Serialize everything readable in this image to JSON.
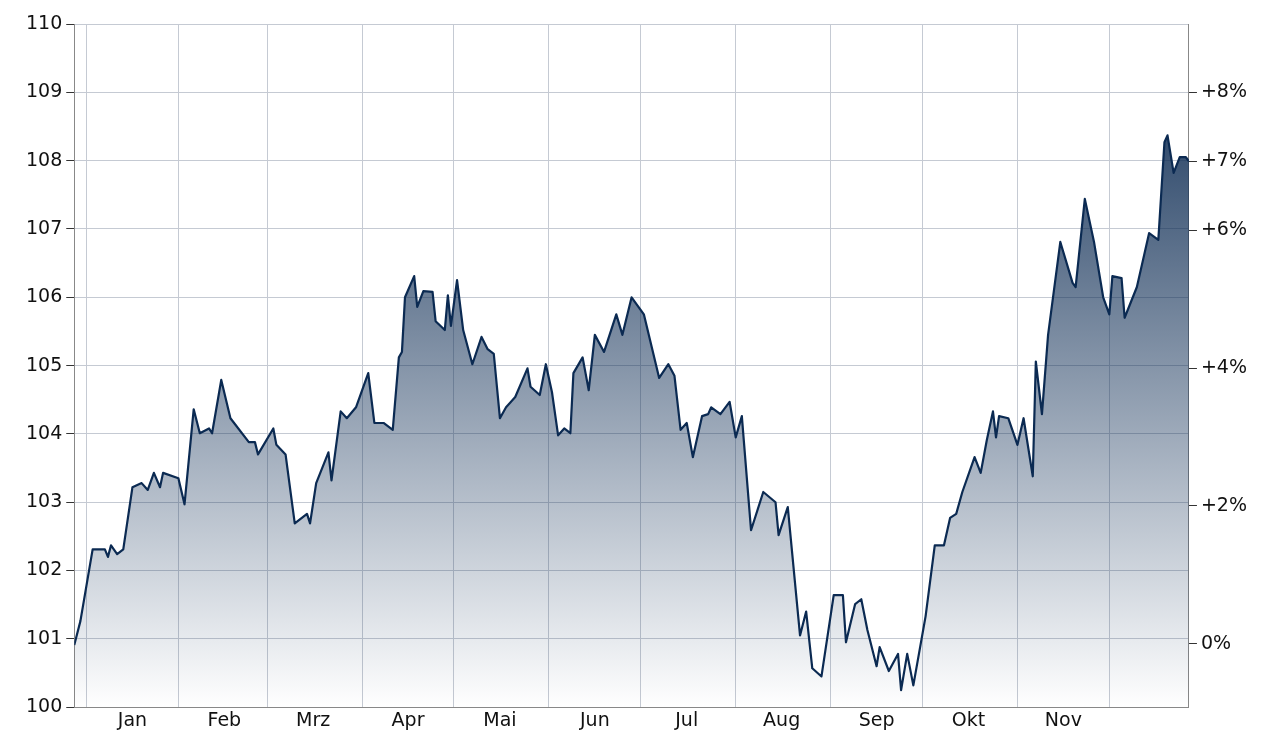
{
  "chart_data": {
    "type": "area",
    "x": [
      "--01-01",
      "--01-03",
      "--01-07",
      "--01-11",
      "--01-12",
      "--01-13",
      "--01-15",
      "--01-17",
      "--01-20",
      "--01-23",
      "--01-25",
      "--01-27",
      "--01-29",
      "--01-30",
      "--02-04",
      "--02-06",
      "--02-09",
      "--02-11",
      "--02-14",
      "--02-15",
      "--02-18",
      "--02-21",
      "--02-27",
      "--03-01",
      "--03-02",
      "--03-07",
      "--03-08",
      "--03-11",
      "--03-14",
      "--03-18",
      "--03-19",
      "--03-21",
      "--03-25",
      "--03-26",
      "--03-29",
      "--03-31",
      "--04-03",
      "--04-07",
      "--04-09",
      "--04-12",
      "--04-15",
      "--04-17",
      "--04-18",
      "--04-19",
      "--04-22",
      "--04-23",
      "--04-25",
      "--04-28",
      "--04-29",
      "--05-02",
      "--05-03",
      "--05-04",
      "--05-06",
      "--05-08",
      "--05-11",
      "--05-14",
      "--05-16",
      "--05-18",
      "--05-20",
      "--05-22",
      "--05-25",
      "--05-29",
      "--05-30",
      "--06-02",
      "--06-04",
      "--06-06",
      "--06-08",
      "--06-10",
      "--06-12",
      "--06-13",
      "--06-16",
      "--06-18",
      "--06-20",
      "--06-23",
      "--06-27",
      "--06-29",
      "--07-02",
      "--07-06",
      "--07-11",
      "--07-14",
      "--07-16",
      "--07-18",
      "--07-20",
      "--07-22",
      "--07-25",
      "--07-27",
      "--07-28",
      "--07-31",
      "--08-03",
      "--08-05",
      "--08-07",
      "--08-10",
      "--08-14",
      "--08-18",
      "--08-19",
      "--08-22",
      "--08-26",
      "--08-28",
      "--08-30",
      "--09-02",
      "--09-06",
      "--09-09",
      "--09-10",
      "--09-13",
      "--09-15",
      "--09-17",
      "--09-20",
      "--09-21",
      "--09-24",
      "--09-27",
      "--09-28",
      "--09-30",
      "--10-02",
      "--10-06",
      "--10-09",
      "--10-12",
      "--10-14",
      "--10-16",
      "--10-18",
      "--10-22",
      "--10-24",
      "--10-26",
      "--10-28",
      "--10-29",
      "--10-30",
      "--11-02",
      "--11-05",
      "--11-07",
      "--11-10",
      "--11-11",
      "--11-13",
      "--11-15",
      "--11-19",
      "--11-23",
      "--11-24",
      "--11-27",
      "--11-30",
      "--12-03",
      "--12-05",
      "--12-06",
      "--12-09",
      "--12-10",
      "--12-14",
      "--12-18",
      "--12-21",
      "--12-23",
      "--12-24",
      "--12-26",
      "--12-28",
      "--12-30",
      "--12-31"
    ],
    "series": [
      {
        "color": "#0b2a52",
        "values": [
          100.91,
          101.26,
          102.31,
          102.31,
          102.2,
          102.37,
          102.24,
          102.31,
          103.22,
          103.28,
          103.18,
          103.43,
          103.22,
          103.43,
          103.35,
          102.97,
          104.36,
          104.01,
          104.08,
          104.01,
          104.79,
          104.23,
          103.88,
          103.88,
          103.7,
          104.08,
          103.84,
          103.7,
          102.69,
          102.83,
          102.69,
          103.28,
          103.73,
          103.32,
          104.33,
          104.23,
          104.39,
          104.89,
          104.16,
          104.16,
          104.06,
          105.12,
          105.2,
          106,
          106.31,
          105.86,
          106.09,
          106.08,
          105.65,
          105.52,
          106.03,
          105.58,
          106.25,
          105.52,
          105.02,
          105.42,
          105.24,
          105.17,
          104.23,
          104.39,
          104.54,
          104.96,
          104.69,
          104.57,
          105.02,
          104.61,
          103.98,
          104.08,
          104.01,
          104.89,
          105.12,
          104.64,
          105.45,
          105.2,
          105.75,
          105.45,
          106,
          105.75,
          104.82,
          105.02,
          104.85,
          104.06,
          104.16,
          103.66,
          104.26,
          104.29,
          104.39,
          104.29,
          104.47,
          103.95,
          104.26,
          102.59,
          103.15,
          103,
          102.52,
          102.93,
          101.05,
          101.4,
          100.57,
          100.45,
          101.64,
          101.64,
          100.95,
          101.51,
          101.58,
          101.13,
          100.6,
          100.88,
          100.53,
          100.78,
          100.25,
          100.78,
          100.32,
          101.33,
          102.37,
          102.37,
          102.77,
          102.83,
          103.15,
          103.66,
          103.43,
          103.91,
          104.33,
          103.95,
          104.26,
          104.23,
          103.84,
          104.23,
          103.38,
          105.06,
          104.29,
          105.45,
          106.81,
          106.21,
          106.15,
          107.44,
          106.81,
          106,
          105.75,
          106.31,
          106.28,
          105.7,
          106.15,
          106.94,
          106.84,
          108.27,
          108.37,
          107.82,
          108.05,
          108.05,
          107.99
        ]
      }
    ],
    "xlim": [
      "--01-01",
      "--12-31"
    ],
    "xticks": [
      {
        "value": "--01-05",
        "label": null
      },
      {
        "value": "--01-20",
        "label": "Jan"
      },
      {
        "value": "--02-04",
        "label": null
      },
      {
        "value": "--02-19",
        "label": "Feb"
      },
      {
        "value": "--03-05",
        "label": null
      },
      {
        "value": "--03-20",
        "label": "Mrz"
      },
      {
        "value": "--04-05",
        "label": null
      },
      {
        "value": "--04-20",
        "label": "Apr"
      },
      {
        "value": "--05-05",
        "label": null
      },
      {
        "value": "--05-20",
        "label": "Mai"
      },
      {
        "value": "--06-05",
        "label": null
      },
      {
        "value": "--06-20",
        "label": "Jun"
      },
      {
        "value": "--07-05",
        "label": null
      },
      {
        "value": "--07-20",
        "label": "Jul"
      },
      {
        "value": "--08-05",
        "label": null
      },
      {
        "value": "--08-20",
        "label": "Aug"
      },
      {
        "value": "--09-05",
        "label": null
      },
      {
        "value": "--09-20",
        "label": "Sep"
      },
      {
        "value": "--10-05",
        "label": null
      },
      {
        "value": "--10-20",
        "label": "Okt"
      },
      {
        "value": "--11-05",
        "label": null
      },
      {
        "value": "--11-20",
        "label": "Nov"
      },
      {
        "value": "--12-05",
        "label": null
      }
    ],
    "ylim": [
      100,
      110
    ],
    "yticks": [
      100,
      101,
      102,
      103,
      104,
      105,
      106,
      107,
      108,
      109,
      110
    ],
    "y2lim": [
      -0.92,
      8.99
    ],
    "y2ticks": [
      {
        "value": 0,
        "label": "0%"
      },
      {
        "value": 2,
        "label": "+2%"
      },
      {
        "value": 4,
        "label": "+4%"
      },
      {
        "value": 6,
        "label": "+6%"
      },
      {
        "value": 7,
        "label": "+7%"
      },
      {
        "value": 8,
        "label": "+8%"
      }
    ],
    "grid": true
  }
}
